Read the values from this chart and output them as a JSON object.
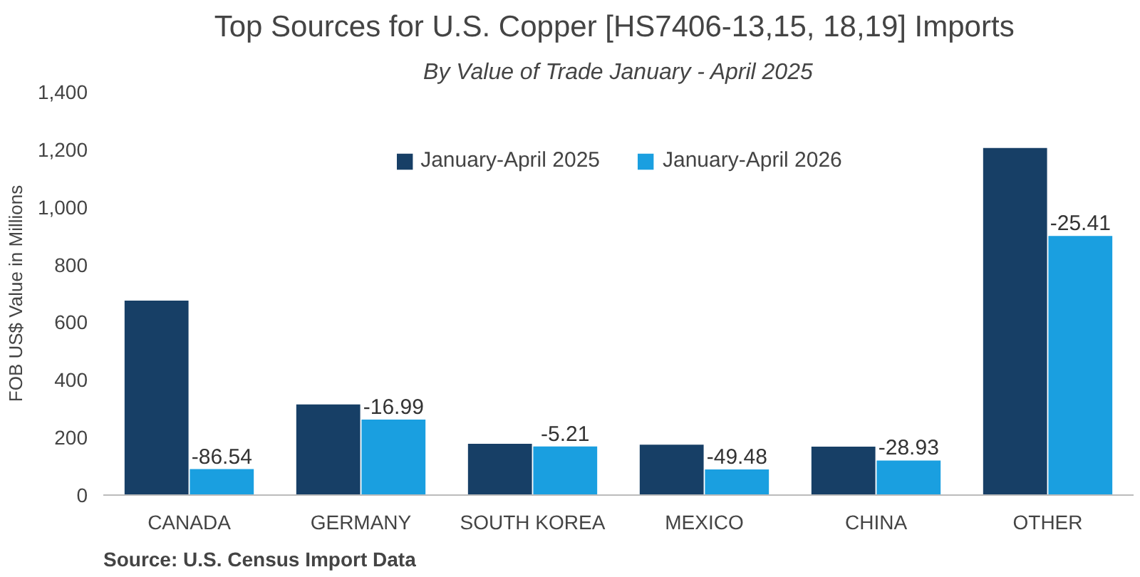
{
  "chart_data": {
    "type": "bar",
    "title": "Top Sources for U.S. Copper  [HS7406-13,15, 18,19] Imports",
    "subtitle": "By Value of Trade January - April 2025",
    "ylabel": "FOB US$ Value in Millions",
    "categories": [
      "CANADA",
      "GERMANY",
      "SOUTH KOREA",
      "MEXICO",
      "CHINA",
      "OTHER"
    ],
    "series": [
      {
        "name": "January-April 2025",
        "color": "#173f66",
        "values": [
          675,
          315,
          178,
          175,
          168,
          1205
        ]
      },
      {
        "name": "January-April 2026",
        "color": "#1a9fe0",
        "values": [
          90,
          262,
          169,
          89,
          120,
          900
        ]
      }
    ],
    "ylim": [
      0,
      1400
    ],
    "yticks": [
      {
        "value": 0,
        "label": "0"
      },
      {
        "value": 200,
        "label": "200"
      },
      {
        "value": 400,
        "label": "400"
      },
      {
        "value": 600,
        "label": "600"
      },
      {
        "value": 800,
        "label": "800"
      },
      {
        "value": 1000,
        "label": "1,000"
      },
      {
        "value": 1200,
        "label": "1,200"
      },
      {
        "value": 1400,
        "label": "1,400"
      }
    ],
    "grid": false,
    "legend": "top",
    "annotations": [
      {
        "text": "-86.54",
        "x": "CANADA",
        "y": 90
      },
      {
        "text": "-16.99",
        "x": "GERMANY",
        "y": 262
      },
      {
        "text": "-5.21",
        "x": "SOUTH KOREA",
        "y": 169
      },
      {
        "text": "-49.48",
        "x": "MEXICO",
        "y": 89
      },
      {
        "text": "-28.93",
        "x": "CHINA",
        "y": 120
      },
      {
        "text": "-25.41",
        "x": "OTHER",
        "y": 900
      },
      "Source: U.S. Census Import Data"
    ]
  }
}
